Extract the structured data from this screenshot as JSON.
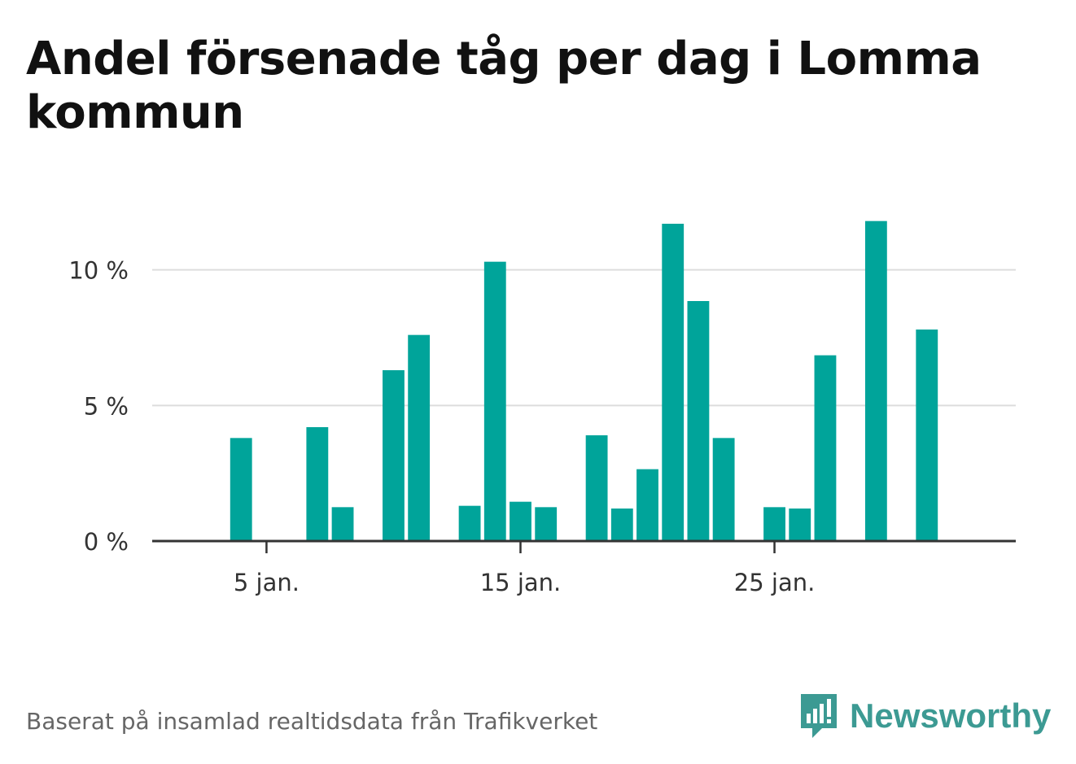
{
  "chart_data": {
    "type": "bar",
    "title": "Andel försenade tåg per dag i Lomma kommun",
    "x_ticks": [
      {
        "day": 5,
        "label": "5 jan."
      },
      {
        "day": 15,
        "label": "15 jan."
      },
      {
        "day": 25,
        "label": "25 jan."
      }
    ],
    "y_ticks": [
      {
        "value": 0,
        "label": "0 %"
      },
      {
        "value": 5,
        "label": "5 %"
      },
      {
        "value": 10,
        "label": "10 %"
      }
    ],
    "ylim": [
      0,
      12.6
    ],
    "xlim": [
      0.5,
      34.5
    ],
    "grid": true,
    "bar_color": "#00a49a",
    "x": [
      1,
      2,
      3,
      4,
      5,
      6,
      7,
      8,
      9,
      10,
      11,
      12,
      13,
      14,
      15,
      16,
      17,
      18,
      19,
      20,
      21,
      22,
      23,
      24,
      25,
      26,
      27,
      28,
      29,
      30,
      31
    ],
    "values": [
      null,
      null,
      null,
      3.8,
      null,
      null,
      4.2,
      1.25,
      null,
      6.3,
      7.6,
      null,
      1.3,
      10.3,
      1.45,
      1.25,
      null,
      3.9,
      1.2,
      2.65,
      11.7,
      8.85,
      3.8,
      null,
      1.25,
      1.2,
      6.85,
      null,
      11.8,
      null,
      7.8
    ]
  },
  "footer": {
    "source": "Baserat på insamlad realtidsdata från Trafikverket",
    "brand": "Newsworthy",
    "brand_color": "#3c9a93",
    "brand_icon": "bar-chart-speech-bubble-icon"
  }
}
